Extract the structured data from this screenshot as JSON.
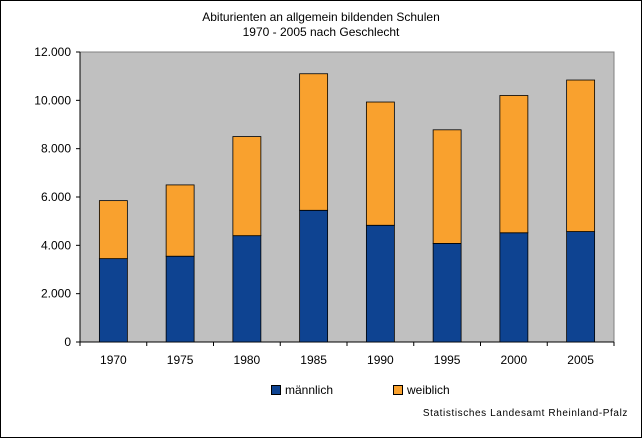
{
  "chart_data": {
    "type": "bar",
    "stacked": true,
    "title_line1": "Abiturienten an allgemein bildenden Schulen",
    "title_line2": "1970 - 2005 nach Geschlecht",
    "categories": [
      "1970",
      "1975",
      "1980",
      "1985",
      "1990",
      "1995",
      "2000",
      "2005"
    ],
    "series": [
      {
        "name": "männlich",
        "color": "#0E4391",
        "values": [
          3450,
          3550,
          4400,
          5450,
          4830,
          4080,
          4520,
          4570
        ]
      },
      {
        "name": "weiblich",
        "color": "#F9A12E",
        "values": [
          2400,
          2950,
          4100,
          5650,
          5100,
          4700,
          5680,
          6270
        ]
      }
    ],
    "yticks": [
      "0",
      "2.000",
      "4.000",
      "6.000",
      "8.000",
      "10.000",
      "12.000"
    ],
    "ylim": [
      0,
      12000
    ],
    "grid": false,
    "plot_background": "#C0C0C0",
    "legend_position": "bottom"
  },
  "source": "Statistisches Landesamt Rheinland-Pfalz"
}
